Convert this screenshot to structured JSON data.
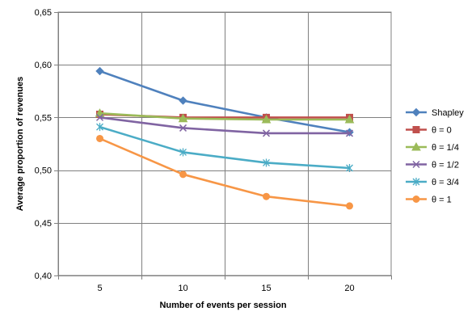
{
  "chart_data": {
    "type": "line",
    "title": "",
    "xlabel": "Number of events per session",
    "ylabel": "Average proportion of revenues",
    "categories": [
      "5",
      "10",
      "15",
      "20"
    ],
    "ylim": [
      0.4,
      0.65
    ],
    "y_ticks": [
      0.4,
      0.45,
      0.5,
      0.55,
      0.6,
      0.65
    ],
    "y_tick_labels": [
      "0,40",
      "0,45",
      "0,50",
      "0,55",
      "0,60",
      "0,65"
    ],
    "grid": true,
    "legend_position": "right",
    "series": [
      {
        "name": "Shapley",
        "values": [
          0.594,
          0.566,
          0.55,
          0.536
        ],
        "color": "#4F81BD",
        "marker": "diamond"
      },
      {
        "name": "θ = 0",
        "values": [
          0.553,
          0.55,
          0.55,
          0.55
        ],
        "color": "#C0504D",
        "marker": "square"
      },
      {
        "name": "θ = 1/4",
        "values": [
          0.554,
          0.549,
          0.548,
          0.548
        ],
        "color": "#9BBB59",
        "marker": "triangle"
      },
      {
        "name": "θ = 1/2",
        "values": [
          0.55,
          0.54,
          0.535,
          0.535
        ],
        "color": "#8064A2",
        "marker": "x"
      },
      {
        "name": "θ = 3/4",
        "values": [
          0.541,
          0.517,
          0.507,
          0.502
        ],
        "color": "#4BACC6",
        "marker": "star"
      },
      {
        "name": "θ = 1",
        "values": [
          0.53,
          0.496,
          0.475,
          0.466
        ],
        "color": "#F79646",
        "marker": "circle"
      }
    ]
  }
}
